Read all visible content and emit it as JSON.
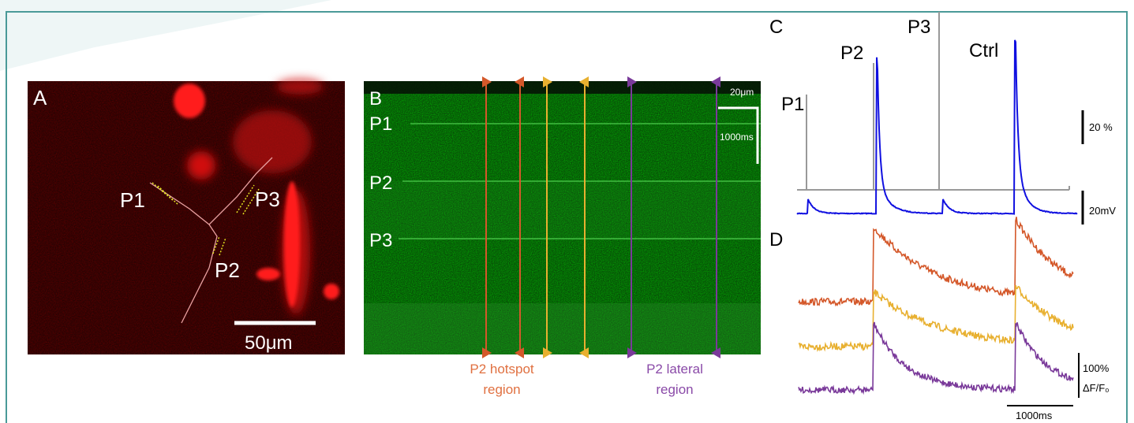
{
  "panel_a": {
    "letter": "A",
    "labels": [
      "P1",
      "P3",
      "P2"
    ],
    "scale": "50μm"
  },
  "panel_b": {
    "letter": "B",
    "labels": [
      "P1",
      "P2",
      "P3"
    ],
    "scale_space": "20μm",
    "scale_time": "1000ms",
    "hotspot": [
      "P2 hotspot",
      "region"
    ],
    "lateral": [
      "P2 lateral",
      "region"
    ]
  },
  "panel_c": {
    "letter": "C",
    "labels": [
      "P1",
      "P2",
      "P3",
      "Ctrl"
    ],
    "scale_pct": "20 %",
    "scale_mv": "20mV"
  },
  "panel_d": {
    "letter": "D",
    "scale_pct": "100%",
    "scale_unit": "ΔF/F₀",
    "scale_time": "1000ms"
  }
}
